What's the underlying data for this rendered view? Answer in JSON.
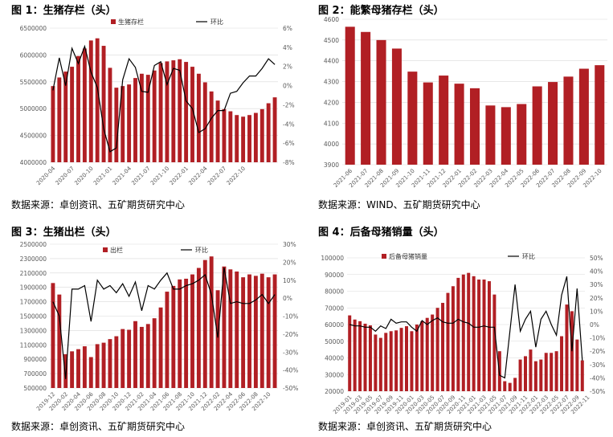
{
  "colors": {
    "bar": "#b11f24",
    "line": "#000000",
    "grid": "#d9d9d9",
    "axis_text": "#595959"
  },
  "chart_data": [
    {
      "id": "c1",
      "type": "bar",
      "title": "图 1：生猪存栏（头）",
      "source": "数据来源：卓创资讯、五矿期货研究中心",
      "bar_name": "生猪存栏",
      "line_name": "环比",
      "ylim": [
        4000000,
        6500000
      ],
      "y_ticks": [
        "4000000",
        "4500000",
        "5000000",
        "5500000",
        "6000000",
        "6500000"
      ],
      "y2lim": [
        -8,
        6
      ],
      "y2_ticks": [
        "-8%",
        "-6%",
        "-4%",
        "-2%",
        "0%",
        "2%",
        "4%",
        "6%"
      ],
      "x_tick_labels": [
        "2020-04",
        "2020-07",
        "2020-10",
        "2021-01",
        "2021-04",
        "2021-07",
        "2021-10",
        "2022-01",
        "2022-04",
        "2022-07",
        "2022-10"
      ],
      "x_tick_every": 3,
      "values": [
        5420000,
        5580000,
        5690000,
        5780000,
        5980000,
        6120000,
        6270000,
        6310000,
        6170000,
        5760000,
        5390000,
        5420000,
        5450000,
        5570000,
        5650000,
        5630000,
        5710000,
        5850000,
        5880000,
        5900000,
        5920000,
        5870000,
        5780000,
        5650000,
        5490000,
        5320000,
        5150000,
        4990000,
        4950000,
        4880000,
        4850000,
        4880000,
        4920000,
        4990000,
        5100000,
        5210000
      ],
      "line_values": [
        -0.5,
        2.9,
        0.0,
        3.9,
        2.3,
        4.1,
        1.4,
        -0.2,
        -4.5,
        -6.9,
        -6.5,
        0.6,
        2.8,
        1.9,
        -0.6,
        -0.7,
        2.1,
        2.5,
        0.1,
        1.8,
        1.6,
        -1.6,
        -2.4,
        -4.9,
        -4.5,
        -3.4,
        -2.6,
        -2.6,
        -0.8,
        -0.6,
        0.3,
        1.0,
        1.0,
        1.8,
        2.8,
        2.2
      ]
    },
    {
      "id": "c2",
      "type": "bar",
      "title": "图 2：能繁母猪存栏（头）",
      "source": "数据来源：WIND、五矿期货研究中心",
      "ylim": [
        3900,
        4600
      ],
      "y_ticks": [
        "3900",
        "4000",
        "4100",
        "4200",
        "4300",
        "4400",
        "4500",
        "4600"
      ],
      "x_tick_labels": [
        "2021-06",
        "2021-07",
        "2021-08",
        "2021-09",
        "2021-10",
        "2021-11",
        "2021-12",
        "2022-01",
        "2022-02",
        "2022-03",
        "2022-04",
        "2022-05",
        "2022-06",
        "2022-07",
        "2022-08",
        "2022-09",
        "2022-10"
      ],
      "x_tick_every": 1,
      "values": [
        4564,
        4539,
        4500,
        4459,
        4348,
        4296,
        4329,
        4290,
        4268,
        4185,
        4177,
        4192,
        4277,
        4298,
        4324,
        4362,
        4379
      ]
    },
    {
      "id": "c3",
      "type": "bar",
      "title": "图 3：生猪出栏（头）",
      "source": "数据来源：卓创资讯、五矿期货研究中心",
      "bar_name": "出栏",
      "line_name": "环比",
      "ylim": [
        500000,
        2500000
      ],
      "y_ticks": [
        "500000",
        "700000",
        "900000",
        "1100000",
        "1300000",
        "1500000",
        "1700000",
        "1900000",
        "2100000",
        "2300000",
        "2500000"
      ],
      "y2lim": [
        -50,
        30
      ],
      "y2_ticks": [
        "-50%",
        "-40%",
        "-30%",
        "-20%",
        "-10%",
        "0%",
        "10%",
        "20%",
        "30%"
      ],
      "x_tick_labels": [
        "2019-12",
        "2020-02",
        "2020-04",
        "2020-06",
        "2020-08",
        "2020-10",
        "2020-12",
        "2021-02",
        "2021-04",
        "2021-06",
        "2021-08",
        "2021-10",
        "2021-12",
        "2022-02",
        "2022-04",
        "2022-06",
        "2022-08",
        "2022-10"
      ],
      "x_tick_every": 2,
      "values": [
        1960000,
        1800000,
        970000,
        1010000,
        1040000,
        1080000,
        930000,
        1110000,
        1130000,
        1180000,
        1220000,
        1320000,
        1310000,
        1430000,
        1350000,
        1390000,
        1470000,
        1620000,
        1840000,
        1920000,
        2010000,
        2020000,
        2080000,
        2170000,
        2280000,
        2330000,
        1860000,
        2190000,
        2150000,
        2120000,
        2040000,
        2080000,
        2060000,
        2090000,
        2040000,
        2080000
      ],
      "line_values": [
        -2,
        -10,
        -45,
        5,
        5,
        7,
        -13,
        10,
        5,
        7,
        3,
        8,
        1,
        9,
        -7,
        7,
        5,
        10,
        14,
        5,
        5,
        7,
        8,
        10,
        13,
        2,
        -22,
        17,
        -3,
        -2,
        -3,
        -3,
        -1,
        2,
        -3,
        2
      ]
    },
    {
      "id": "c4",
      "type": "bar",
      "title": "图 4：后备母猪销量（头）",
      "source": "数据来源：卓创资讯、五矿期货研究中心",
      "bar_name": "后备母猪销量",
      "line_name": "环比",
      "ylim": [
        20000,
        100000
      ],
      "y_ticks": [
        "20000",
        "30000",
        "40000",
        "50000",
        "60000",
        "70000",
        "80000",
        "90000",
        "100000"
      ],
      "y2lim": [
        -50,
        50
      ],
      "y2_ticks": [
        "-50%",
        "-40%",
        "-30%",
        "-20%",
        "-10%",
        "0%",
        "10%",
        "20%",
        "30%",
        "40%",
        "50%"
      ],
      "x_tick_labels": [
        "2019-01",
        "2019-03",
        "2019-05",
        "2019-07",
        "2019-09",
        "2019-11",
        "2020-01",
        "2020-03",
        "2020-05",
        "2020-07",
        "2020-09",
        "2020-11",
        "2021-01",
        "2021-03",
        "2021-05",
        "2021-07",
        "2021-09",
        "2021-11",
        "2022-01",
        "2022-03",
        "2022-05",
        "2022-07",
        "2022-09",
        "2022-11"
      ],
      "x_tick_every": 2,
      "values": [
        65500,
        63000,
        62000,
        60500,
        59500,
        54000,
        52000,
        55000,
        56000,
        56500,
        58000,
        59000,
        56000,
        60000,
        62000,
        64000,
        66000,
        70000,
        73000,
        79000,
        83000,
        88000,
        90000,
        91000,
        89000,
        87000,
        87000,
        86000,
        78000,
        44000,
        26000,
        25000,
        28000,
        39000,
        41000,
        45000,
        38000,
        39000,
        43000,
        43000,
        44000,
        53000,
        72000,
        68000,
        51000,
        38500
      ],
      "line_values": [
        0,
        -1,
        -1,
        -2,
        -2,
        -5,
        -1,
        -3,
        4,
        1,
        2,
        2,
        -2,
        -5,
        3,
        0,
        3,
        5,
        2,
        1,
        1,
        4,
        2,
        1,
        -2,
        -2,
        -1,
        -2,
        -2,
        -38,
        -40,
        -5,
        30,
        -5,
        4,
        10,
        -17,
        4,
        10,
        0,
        -8,
        22,
        36,
        -20,
        27,
        -27
      ]
    }
  ]
}
